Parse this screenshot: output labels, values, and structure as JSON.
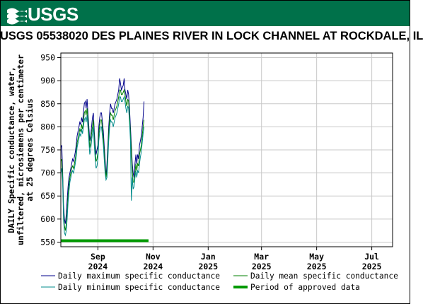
{
  "header": {
    "agency": "USGS"
  },
  "chart_data": {
    "type": "line",
    "title": "USGS 05538020 DES PLAINES RIVER IN LOCK CHANNEL AT ROCKDALE, IL",
    "ylabel_lines": [
      "DAILY Specific conductance, water,",
      "unfiltered, microsiemens per centimeter",
      "at 25 degrees Celsius"
    ],
    "ylim": [
      540,
      960
    ],
    "y_ticks": [
      550,
      600,
      650,
      700,
      750,
      800,
      850,
      900,
      950
    ],
    "xlim": [
      "2024-07-22",
      "2025-07-24"
    ],
    "x_ticks": [
      {
        "date": "2024-09-01",
        "month": "Sep",
        "year": "2024"
      },
      {
        "date": "2024-11-01",
        "month": "Nov",
        "year": "2024"
      },
      {
        "date": "2025-01-01",
        "month": "Jan",
        "year": "2025"
      },
      {
        "date": "2025-03-01",
        "month": "Mar",
        "year": "2025"
      },
      {
        "date": "2025-05-01",
        "month": "May",
        "year": "2025"
      },
      {
        "date": "2025-07-01",
        "month": "Jul",
        "year": "2025"
      }
    ],
    "grid": true,
    "legend_position": "bottom",
    "colors": {
      "max": "#00008b",
      "mean": "#008000",
      "min": "#008b8b",
      "approved": "#009900"
    },
    "series": [
      {
        "name": "Daily maximum specific conductance",
        "key": "max",
        "x": [
          "2024-07-22",
          "2024-07-23",
          "2024-07-24",
          "2024-07-25",
          "2024-07-26",
          "2024-07-27",
          "2024-07-28",
          "2024-07-29",
          "2024-07-30",
          "2024-07-31",
          "2024-08-01",
          "2024-08-02",
          "2024-08-03",
          "2024-08-04",
          "2024-08-05",
          "2024-08-06",
          "2024-08-07",
          "2024-08-08",
          "2024-08-09",
          "2024-08-10",
          "2024-08-11",
          "2024-08-12",
          "2024-08-13",
          "2024-08-14",
          "2024-08-15",
          "2024-08-16",
          "2024-08-17",
          "2024-08-18",
          "2024-08-19",
          "2024-08-20",
          "2024-08-21",
          "2024-08-22",
          "2024-08-23",
          "2024-08-24",
          "2024-08-25",
          "2024-08-26",
          "2024-08-27",
          "2024-08-28",
          "2024-08-29",
          "2024-08-30",
          "2024-08-31",
          "2024-09-01",
          "2024-09-02",
          "2024-09-03",
          "2024-09-04",
          "2024-09-05",
          "2024-09-06",
          "2024-09-07",
          "2024-09-08",
          "2024-09-09",
          "2024-09-10",
          "2024-09-11",
          "2024-09-12",
          "2024-09-13",
          "2024-09-14",
          "2024-09-15",
          "2024-09-16",
          "2024-09-17",
          "2024-09-18",
          "2024-09-19",
          "2024-09-20",
          "2024-09-21",
          "2024-09-22",
          "2024-09-23",
          "2024-09-24",
          "2024-09-25",
          "2024-09-26",
          "2024-09-27",
          "2024-09-28",
          "2024-09-29",
          "2024-09-30",
          "2024-10-01",
          "2024-10-02",
          "2024-10-03",
          "2024-10-04",
          "2024-10-05",
          "2024-10-06",
          "2024-10-07",
          "2024-10-08",
          "2024-10-09",
          "2024-10-10",
          "2024-10-11",
          "2024-10-12",
          "2024-10-13",
          "2024-10-14",
          "2024-10-15",
          "2024-10-16",
          "2024-10-17",
          "2024-10-18",
          "2024-10-19",
          "2024-10-20",
          "2024-10-21",
          "2024-10-22"
        ],
        "values": [
          755,
          760,
          700,
          630,
          600,
          590,
          610,
          640,
          670,
          690,
          700,
          710,
          720,
          730,
          725,
          735,
          745,
          760,
          780,
          790,
          800,
          810,
          805,
          820,
          810,
          830,
          850,
          855,
          840,
          860,
          830,
          800,
          770,
          780,
          800,
          820,
          830,
          790,
          760,
          740,
          750,
          760,
          800,
          820,
          830,
          830,
          810,
          790,
          760,
          730,
          690,
          720,
          760,
          800,
          830,
          850,
          840,
          840,
          830,
          840,
          850,
          855,
          860,
          870,
          880,
          905,
          895,
          880,
          885,
          890,
          905,
          880,
          870,
          860,
          880,
          870,
          840,
          800,
          760,
          720,
          700,
          690,
          720,
          740,
          720,
          740,
          730,
          760,
          770,
          780,
          800,
          820,
          855
        ]
      },
      {
        "name": "Daily mean specific conductance",
        "key": "mean",
        "x": [
          "2024-07-22",
          "2024-07-23",
          "2024-07-24",
          "2024-07-25",
          "2024-07-26",
          "2024-07-27",
          "2024-07-28",
          "2024-07-29",
          "2024-07-30",
          "2024-07-31",
          "2024-08-01",
          "2024-08-02",
          "2024-08-03",
          "2024-08-04",
          "2024-08-05",
          "2024-08-06",
          "2024-08-07",
          "2024-08-08",
          "2024-08-09",
          "2024-08-10",
          "2024-08-11",
          "2024-08-12",
          "2024-08-13",
          "2024-08-14",
          "2024-08-15",
          "2024-08-16",
          "2024-08-17",
          "2024-08-18",
          "2024-08-19",
          "2024-08-20",
          "2024-08-21",
          "2024-08-22",
          "2024-08-23",
          "2024-08-24",
          "2024-08-25",
          "2024-08-26",
          "2024-08-27",
          "2024-08-28",
          "2024-08-29",
          "2024-08-30",
          "2024-08-31",
          "2024-09-01",
          "2024-09-02",
          "2024-09-03",
          "2024-09-04",
          "2024-09-05",
          "2024-09-06",
          "2024-09-07",
          "2024-09-08",
          "2024-09-09",
          "2024-09-10",
          "2024-09-11",
          "2024-09-12",
          "2024-09-13",
          "2024-09-14",
          "2024-09-15",
          "2024-09-16",
          "2024-09-17",
          "2024-09-18",
          "2024-09-19",
          "2024-09-20",
          "2024-09-21",
          "2024-09-22",
          "2024-09-23",
          "2024-09-24",
          "2024-09-25",
          "2024-09-26",
          "2024-09-27",
          "2024-09-28",
          "2024-09-29",
          "2024-09-30",
          "2024-10-01",
          "2024-10-02",
          "2024-10-03",
          "2024-10-04",
          "2024-10-05",
          "2024-10-06",
          "2024-10-07",
          "2024-10-08",
          "2024-10-09",
          "2024-10-10",
          "2024-10-11",
          "2024-10-12",
          "2024-10-13",
          "2024-10-14",
          "2024-10-15",
          "2024-10-16",
          "2024-10-17",
          "2024-10-18",
          "2024-10-19",
          "2024-10-20",
          "2024-10-21",
          "2024-10-22"
        ],
        "values": [
          725,
          730,
          690,
          615,
          585,
          575,
          590,
          615,
          650,
          675,
          690,
          700,
          710,
          715,
          710,
          720,
          730,
          745,
          765,
          775,
          785,
          795,
          790,
          805,
          795,
          810,
          830,
          835,
          825,
          840,
          815,
          785,
          755,
          765,
          785,
          800,
          815,
          775,
          745,
          725,
          730,
          745,
          785,
          805,
          815,
          815,
          795,
          775,
          745,
          715,
          690,
          705,
          745,
          785,
          815,
          830,
          825,
          825,
          815,
          825,
          835,
          840,
          845,
          855,
          865,
          880,
          880,
          870,
          870,
          875,
          880,
          870,
          855,
          845,
          860,
          855,
          825,
          785,
          745,
          705,
          680,
          680,
          700,
          720,
          705,
          720,
          715,
          740,
          750,
          760,
          780,
          800,
          815
        ]
      },
      {
        "name": "Daily minimum specific conductance",
        "key": "min",
        "x": [
          "2024-07-22",
          "2024-07-23",
          "2024-07-24",
          "2024-07-25",
          "2024-07-26",
          "2024-07-27",
          "2024-07-28",
          "2024-07-29",
          "2024-07-30",
          "2024-07-31",
          "2024-08-01",
          "2024-08-02",
          "2024-08-03",
          "2024-08-04",
          "2024-08-05",
          "2024-08-06",
          "2024-08-07",
          "2024-08-08",
          "2024-08-09",
          "2024-08-10",
          "2024-08-11",
          "2024-08-12",
          "2024-08-13",
          "2024-08-14",
          "2024-08-15",
          "2024-08-16",
          "2024-08-17",
          "2024-08-18",
          "2024-08-19",
          "2024-08-20",
          "2024-08-21",
          "2024-08-22",
          "2024-08-23",
          "2024-08-24",
          "2024-08-25",
          "2024-08-26",
          "2024-08-27",
          "2024-08-28",
          "2024-08-29",
          "2024-08-30",
          "2024-08-31",
          "2024-09-01",
          "2024-09-02",
          "2024-09-03",
          "2024-09-04",
          "2024-09-05",
          "2024-09-06",
          "2024-09-07",
          "2024-09-08",
          "2024-09-09",
          "2024-09-10",
          "2024-09-11",
          "2024-09-12",
          "2024-09-13",
          "2024-09-14",
          "2024-09-15",
          "2024-09-16",
          "2024-09-17",
          "2024-09-18",
          "2024-09-19",
          "2024-09-20",
          "2024-09-21",
          "2024-09-22",
          "2024-09-23",
          "2024-09-24",
          "2024-09-25",
          "2024-09-26",
          "2024-09-27",
          "2024-09-28",
          "2024-09-29",
          "2024-09-30",
          "2024-10-01",
          "2024-10-02",
          "2024-10-03",
          "2024-10-04",
          "2024-10-05",
          "2024-10-06",
          "2024-10-07",
          "2024-10-08",
          "2024-10-09",
          "2024-10-10",
          "2024-10-11",
          "2024-10-12",
          "2024-10-13",
          "2024-10-14",
          "2024-10-15",
          "2024-10-16",
          "2024-10-17",
          "2024-10-18",
          "2024-10-19",
          "2024-10-20",
          "2024-10-21",
          "2024-10-22"
        ],
        "values": [
          700,
          710,
          680,
          600,
          570,
          565,
          575,
          600,
          635,
          660,
          680,
          690,
          700,
          705,
          700,
          710,
          720,
          735,
          755,
          765,
          775,
          785,
          780,
          795,
          785,
          800,
          815,
          820,
          810,
          825,
          800,
          770,
          740,
          750,
          770,
          785,
          800,
          760,
          730,
          710,
          715,
          730,
          770,
          790,
          800,
          800,
          780,
          760,
          730,
          700,
          685,
          690,
          730,
          770,
          800,
          815,
          810,
          810,
          800,
          810,
          820,
          825,
          830,
          840,
          850,
          865,
          865,
          855,
          855,
          860,
          865,
          855,
          840,
          830,
          845,
          840,
          810,
          770,
          640,
          690,
          665,
          670,
          690,
          705,
          690,
          705,
          700,
          720,
          735,
          745,
          765,
          785,
          800
        ]
      }
    ],
    "approved_period": {
      "name": "Period of approved data",
      "start": "2024-07-22",
      "end": "2024-10-27",
      "y": 553
    }
  }
}
